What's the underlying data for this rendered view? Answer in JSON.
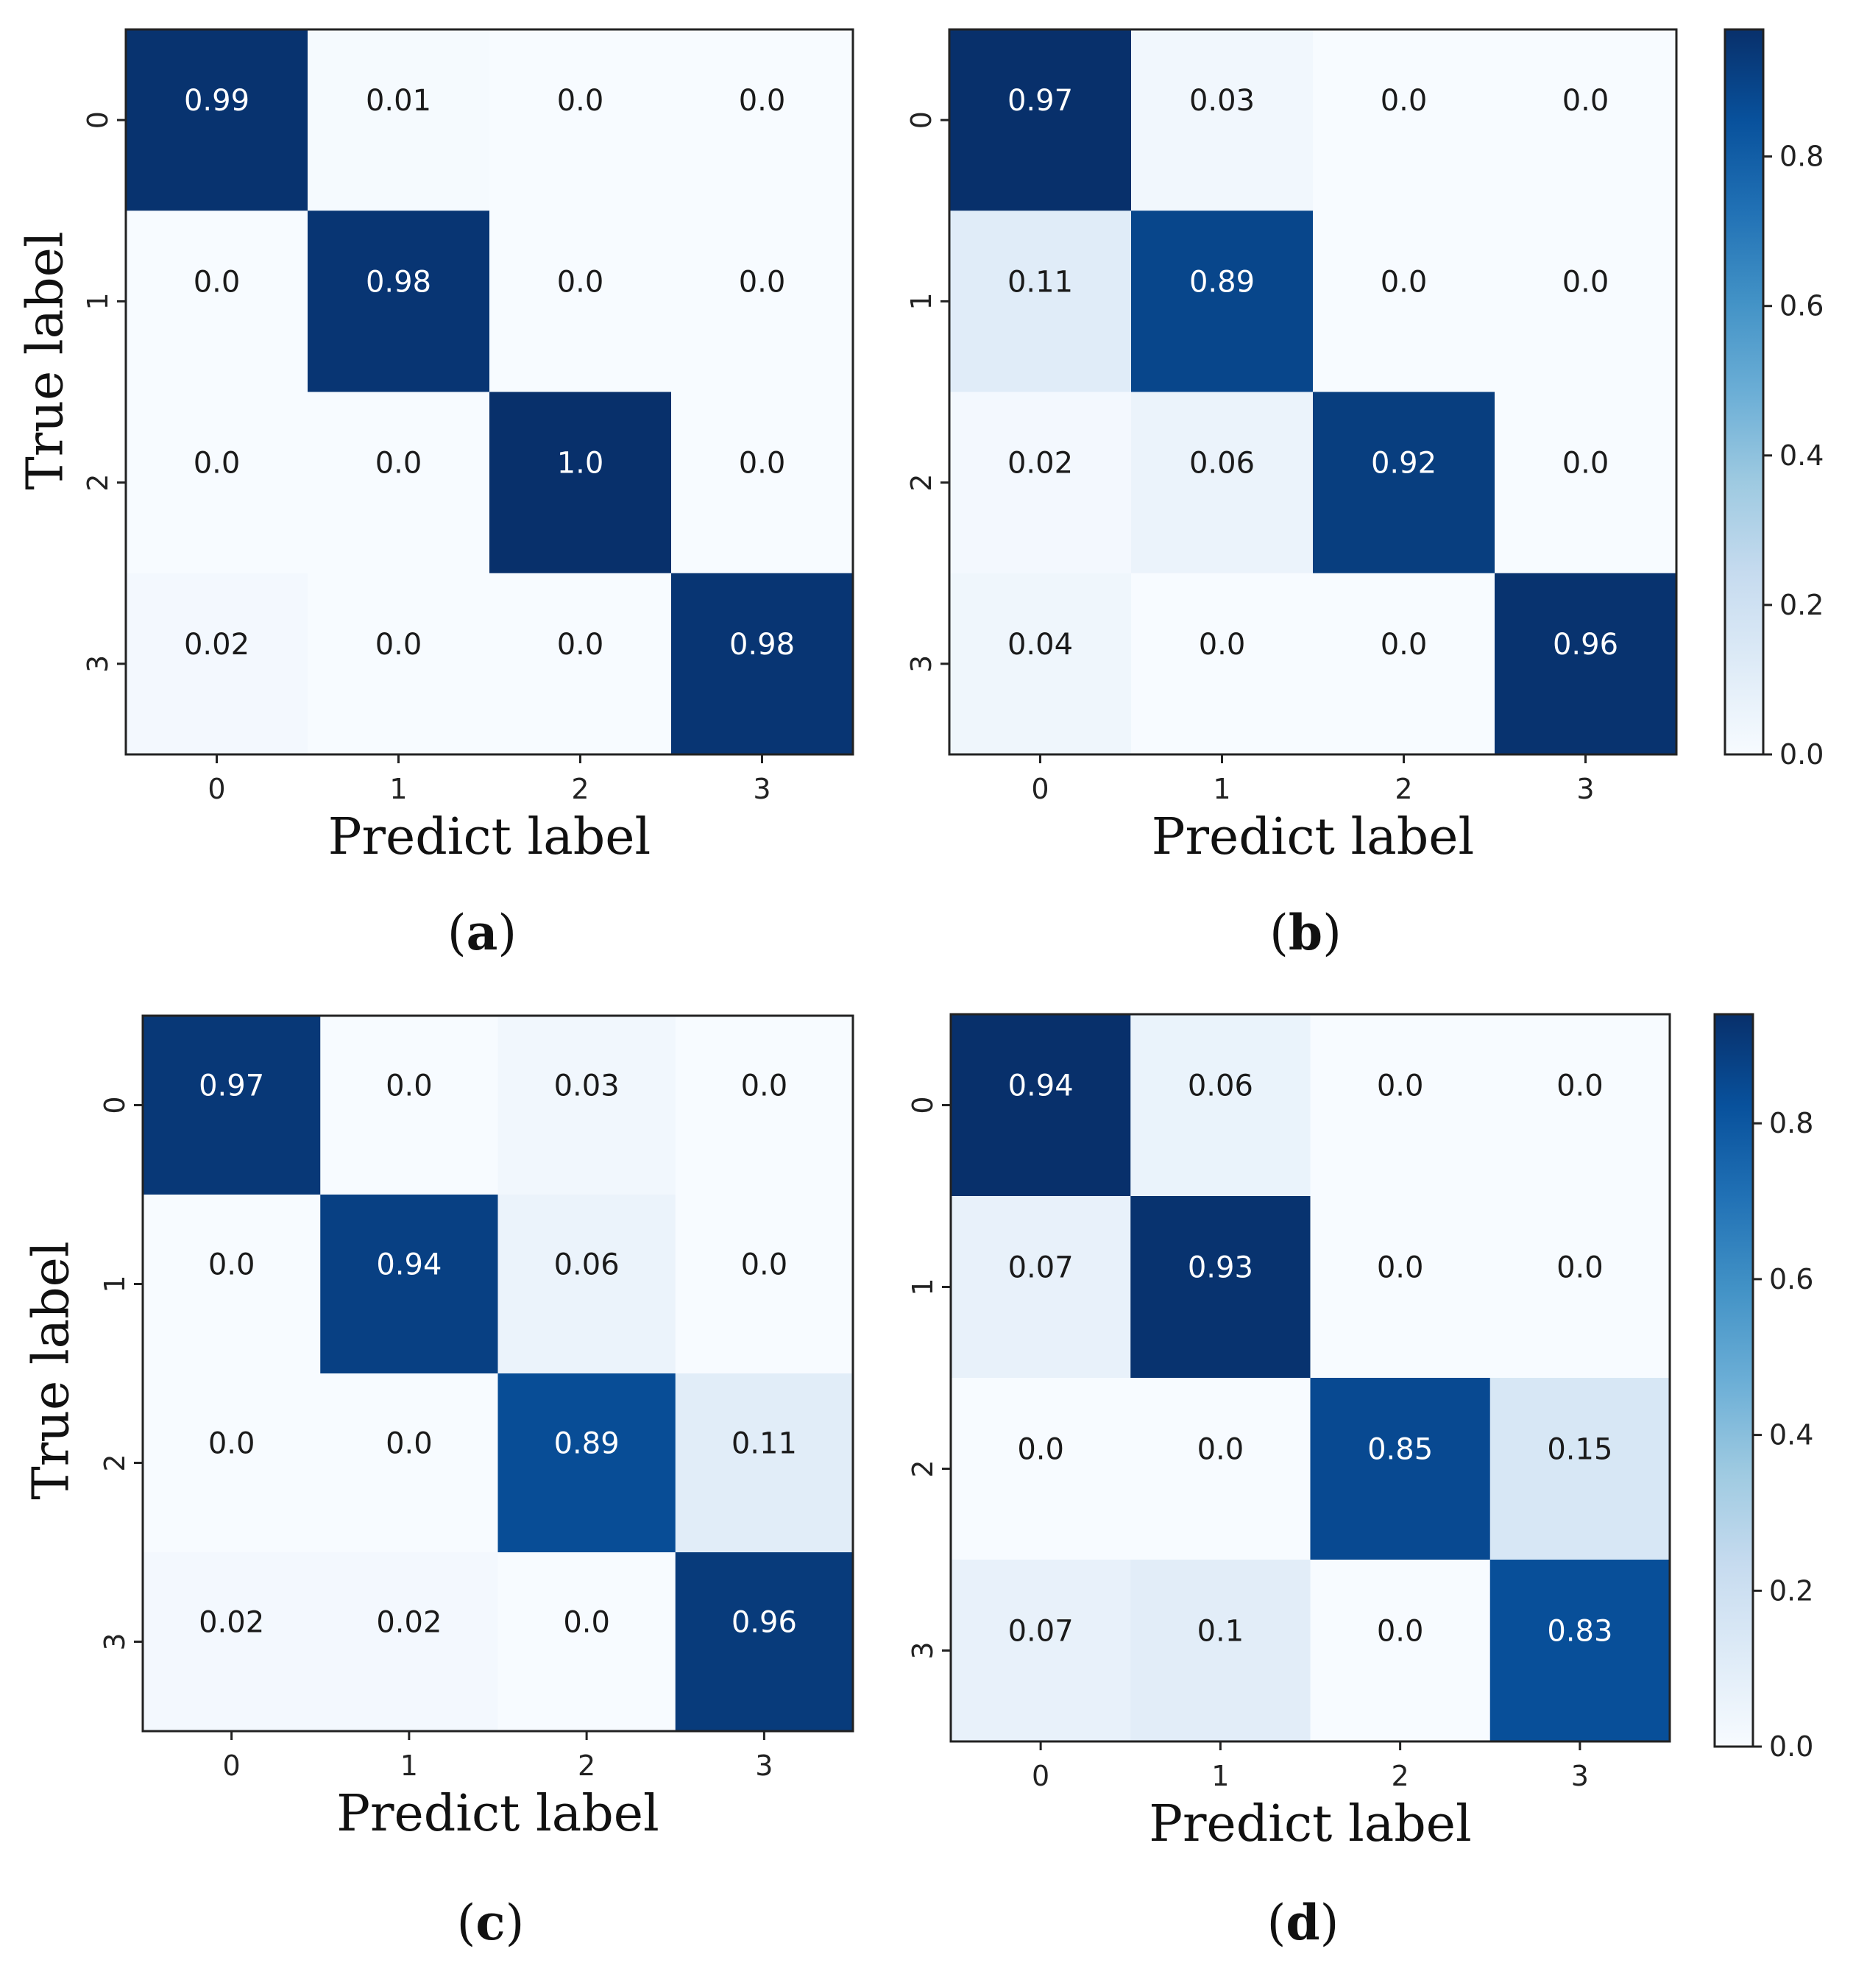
{
  "chart_data": [
    {
      "type": "heatmap",
      "panel": "(a)",
      "caption_letter": "a",
      "xlabel": "Predict label",
      "ylabel": "True label",
      "x_ticks": [
        "0",
        "1",
        "2",
        "3"
      ],
      "y_ticks": [
        "0",
        "1",
        "2",
        "3"
      ],
      "values": [
        [
          0.99,
          0.01,
          0.0,
          0.0
        ],
        [
          0.0,
          0.98,
          0.0,
          0.0
        ],
        [
          0.0,
          0.0,
          1.0,
          0.0
        ],
        [
          0.02,
          0.0,
          0.0,
          0.98
        ]
      ],
      "labels": [
        [
          "0.99",
          "0.01",
          "0.0",
          "0.0"
        ],
        [
          "0.0",
          "0.98",
          "0.0",
          "0.0"
        ],
        [
          "0.0",
          "0.0",
          "1.0",
          "0.0"
        ],
        [
          "0.02",
          "0.0",
          "0.0",
          "0.98"
        ]
      ]
    },
    {
      "type": "heatmap",
      "panel": "(b)",
      "caption_letter": "b",
      "xlabel": "Predict label",
      "ylabel": "",
      "x_ticks": [
        "0",
        "1",
        "2",
        "3"
      ],
      "y_ticks": [
        "0",
        "1",
        "2",
        "3"
      ],
      "values": [
        [
          0.97,
          0.03,
          0.0,
          0.0
        ],
        [
          0.11,
          0.89,
          0.0,
          0.0
        ],
        [
          0.02,
          0.06,
          0.92,
          0.0
        ],
        [
          0.04,
          0.0,
          0.0,
          0.96
        ]
      ],
      "labels": [
        [
          "0.97",
          "0.03",
          "0.0",
          "0.0"
        ],
        [
          "0.11",
          "0.89",
          "0.0",
          "0.0"
        ],
        [
          "0.02",
          "0.06",
          "0.92",
          "0.0"
        ],
        [
          "0.04",
          "0.0",
          "0.0",
          "0.96"
        ]
      ],
      "colorbar": {
        "range": [
          0,
          0.97
        ],
        "ticks": [
          "0.0",
          "0.2",
          "0.4",
          "0.6",
          "0.8"
        ],
        "tick_values": [
          0,
          0.2,
          0.4,
          0.6,
          0.8
        ]
      }
    },
    {
      "type": "heatmap",
      "panel": "(c)",
      "caption_letter": "c",
      "xlabel": "Predict label",
      "ylabel": "True label",
      "x_ticks": [
        "0",
        "1",
        "2",
        "3"
      ],
      "y_ticks": [
        "0",
        "1",
        "2",
        "3"
      ],
      "values": [
        [
          0.97,
          0.0,
          0.03,
          0.0
        ],
        [
          0.0,
          0.94,
          0.06,
          0.0
        ],
        [
          0.0,
          0.0,
          0.89,
          0.11
        ],
        [
          0.02,
          0.02,
          0.0,
          0.96
        ]
      ],
      "labels": [
        [
          "0.97",
          "0.0",
          "0.03",
          "0.0"
        ],
        [
          "0.0",
          "0.94",
          "0.06",
          "0.0"
        ],
        [
          "0.0",
          "0.0",
          "0.89",
          "0.11"
        ],
        [
          "0.02",
          "0.02",
          "0.0",
          "0.96"
        ]
      ]
    },
    {
      "type": "heatmap",
      "panel": "(d)",
      "caption_letter": "d",
      "xlabel": "Predict label",
      "ylabel": "",
      "x_ticks": [
        "0",
        "1",
        "2",
        "3"
      ],
      "y_ticks": [
        "0",
        "1",
        "2",
        "3"
      ],
      "values": [
        [
          0.94,
          0.06,
          0.0,
          0.0
        ],
        [
          0.07,
          0.93,
          0.0,
          0.0
        ],
        [
          0.0,
          0.0,
          0.85,
          0.15
        ],
        [
          0.07,
          0.1,
          0.0,
          0.83
        ]
      ],
      "labels": [
        [
          "0.94",
          "0.06",
          "0.0",
          "0.0"
        ],
        [
          "0.07",
          "0.93",
          "0.0",
          "0.0"
        ],
        [
          "0.0",
          "0.0",
          "0.85",
          "0.15"
        ],
        [
          "0.07",
          "0.1",
          "0.0",
          "0.83"
        ]
      ],
      "colorbar": {
        "range": [
          0,
          0.94
        ],
        "ticks": [
          "0.0",
          "0.2",
          "0.4",
          "0.6",
          "0.8"
        ],
        "tick_values": [
          0,
          0.2,
          0.4,
          0.6,
          0.8
        ]
      }
    }
  ],
  "colors": {
    "low": "#f7fbff",
    "high": "#08306b",
    "text_dark": "#1a1a1a",
    "text_light": "#ffffff",
    "frame": "#222222"
  }
}
